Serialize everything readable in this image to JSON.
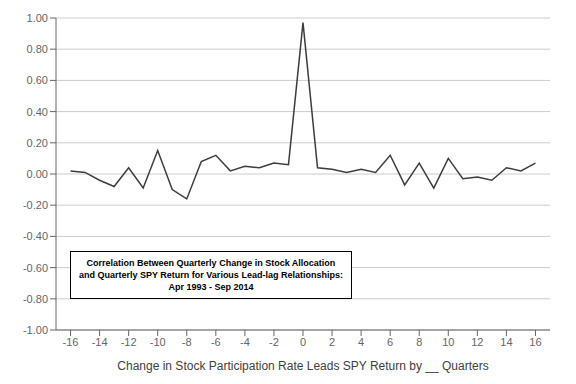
{
  "chart_data": {
    "type": "line",
    "x": [
      -16,
      -15,
      -14,
      -13,
      -12,
      -11,
      -10,
      -9,
      -8,
      -7,
      -6,
      -5,
      -4,
      -3,
      -2,
      -1,
      0,
      1,
      2,
      3,
      4,
      5,
      6,
      7,
      8,
      9,
      10,
      11,
      12,
      13,
      14,
      15,
      16
    ],
    "values": [
      0.02,
      0.01,
      -0.04,
      -0.08,
      0.04,
      -0.09,
      0.15,
      -0.1,
      -0.16,
      0.08,
      0.12,
      0.02,
      0.05,
      0.04,
      0.07,
      0.06,
      0.97,
      0.04,
      0.03,
      0.01,
      0.03,
      0.01,
      0.12,
      -0.07,
      0.07,
      -0.09,
      0.1,
      -0.03,
      -0.02,
      -0.04,
      0.04,
      0.02,
      0.07
    ],
    "color": "#3d3d3d",
    "xlim": [
      -17,
      17
    ],
    "ylim": [
      -1.0,
      1.0
    ],
    "xticks": [
      -16,
      -14,
      -12,
      -10,
      -8,
      -6,
      -4,
      -2,
      0,
      2,
      4,
      6,
      8,
      10,
      12,
      14,
      16
    ],
    "yticks": [
      {
        "value": -1.0,
        "label": "-1.00"
      },
      {
        "value": -0.8,
        "label": "-0.80"
      },
      {
        "value": -0.6,
        "label": "-0.60"
      },
      {
        "value": -0.4,
        "label": "-0.40"
      },
      {
        "value": -0.2,
        "label": "-0.20"
      },
      {
        "value": 0.0,
        "label": "0.00"
      },
      {
        "value": 0.2,
        "label": "0.20"
      },
      {
        "value": 0.4,
        "label": "0.40"
      },
      {
        "value": 0.6,
        "label": "0.60"
      },
      {
        "value": 0.8,
        "label": "0.80"
      },
      {
        "value": 1.0,
        "label": "1.00"
      }
    ],
    "xlabel": "Change in Stock Participation Rate Leads SPY Return by __ Quarters",
    "annotation": "Correlation Between Quarterly Change in Stock Allocation\nand Quarterly SPY Return for Various Lead-lag Relationships:\nApr 1993 - Sep 2014",
    "grid": true
  }
}
